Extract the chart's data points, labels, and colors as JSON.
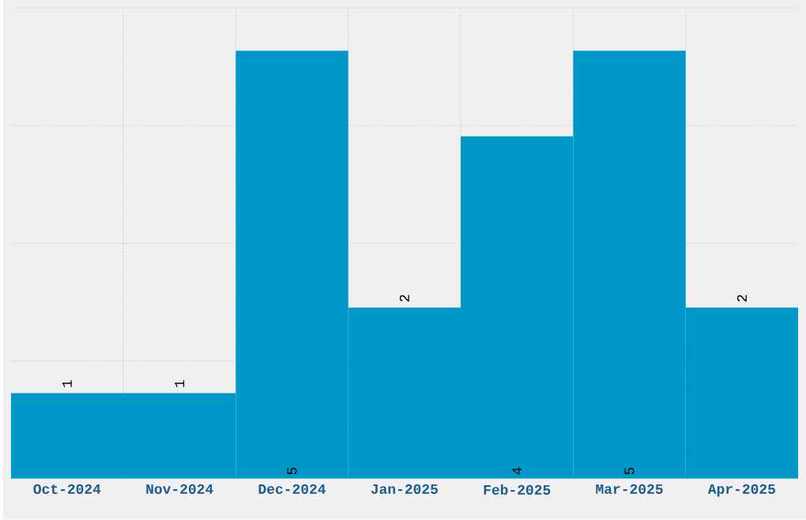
{
  "chart_data": {
    "type": "bar",
    "categories": [
      "Oct-2024",
      "Nov-2024",
      "Dec-2024",
      "Jan-2025",
      "Feb-2025",
      "Mar-2025",
      "Apr-2025"
    ],
    "values": [
      1,
      1,
      5,
      2,
      4,
      5,
      2
    ],
    "color": "#0098c8",
    "ylim": [
      0,
      5.5
    ],
    "yticks": [
      {
        "value": 1.375,
        "label": null
      },
      {
        "value": 2.75,
        "label": null
      },
      {
        "value": 4.125,
        "label": null
      },
      {
        "value": 5.5,
        "label": null
      }
    ],
    "tick_labels": "x",
    "data_labels": true,
    "grid": true
  }
}
